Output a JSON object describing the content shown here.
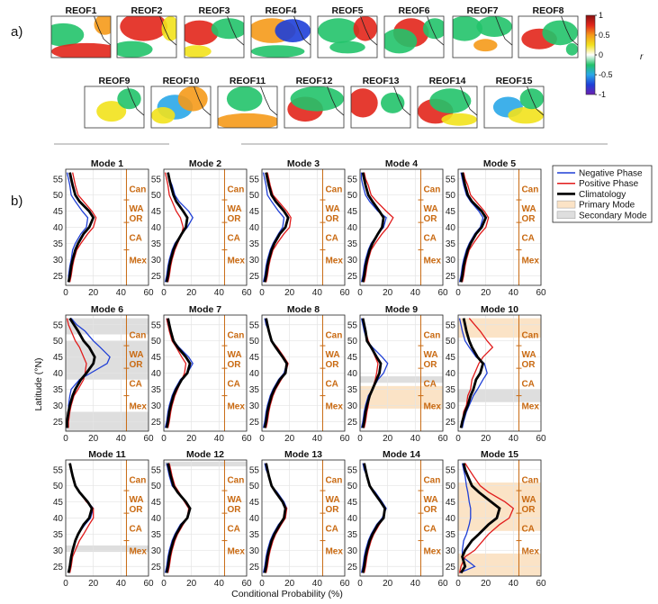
{
  "panel_a": {
    "label": "a)",
    "maps": [
      "REOF1",
      "REOF2",
      "REOF3",
      "REOF4",
      "REOF5",
      "REOF6",
      "REOF7",
      "REOF8",
      "REOF9",
      "REOF10",
      "REOF11",
      "REOF12",
      "REOF13",
      "REOF14",
      "REOF15"
    ],
    "colorbar": {
      "label": "r",
      "ticks": [
        "1",
        "0.5",
        "0",
        "-0.5",
        "-1"
      ],
      "colors": [
        "#6a1fb0",
        "#1e3fd8",
        "#2aa7e8",
        "#22c36a",
        "#ffffff",
        "#f2e21c",
        "#f59a1a",
        "#e2261b",
        "#8a1010"
      ]
    }
  },
  "panel_b": {
    "label": "b)",
    "ylabel": "Latitude (°N)",
    "xlabel": "Conditional Probability (%)",
    "yticks": [
      25,
      30,
      35,
      40,
      45,
      50,
      55
    ],
    "xticks": [
      0,
      20,
      40,
      60
    ],
    "regions": [
      "Can",
      "WA",
      "OR",
      "CA",
      "Mex"
    ],
    "legend": {
      "negative": "Negative Phase",
      "positive": "Positive Phase",
      "climatology": "Climatology",
      "primary": "Primary Mode",
      "secondary": "Secondary Mode"
    },
    "colors": {
      "negative": "#1f3fd6",
      "positive": "#e11b1b",
      "climatology": "#000000",
      "primary": "#fbe3c6",
      "secondary": "#dedede",
      "region": "#c96a12"
    }
  },
  "chart_data": {
    "type": "line",
    "lat": [
      23,
      25,
      28,
      30,
      33,
      35,
      38,
      40,
      43,
      45,
      48,
      50,
      53,
      55,
      57
    ],
    "ylim": [
      22,
      58
    ],
    "xlim": [
      0,
      60
    ],
    "modes": [
      {
        "title": "Mode 1",
        "clim": [
          2,
          3,
          4,
          5,
          7,
          9,
          13,
          17,
          20,
          17,
          10,
          7,
          5,
          4,
          3
        ],
        "neg": [
          2,
          2,
          3,
          4,
          5,
          7,
          11,
          15,
          16,
          12,
          7,
          4,
          3,
          2,
          1
        ],
        "pos": [
          3,
          4,
          5,
          6,
          8,
          11,
          16,
          20,
          22,
          19,
          13,
          9,
          7,
          6,
          5
        ],
        "primary": [],
        "secondary": []
      },
      {
        "title": "Mode 2",
        "clim": [
          2,
          3,
          4,
          5,
          7,
          9,
          13,
          16,
          17,
          14,
          9,
          7,
          5,
          4,
          3
        ],
        "neg": [
          1,
          2,
          3,
          4,
          6,
          8,
          13,
          17,
          21,
          18,
          11,
          8,
          6,
          4,
          3
        ],
        "pos": [
          3,
          4,
          5,
          6,
          8,
          10,
          13,
          14,
          12,
          9,
          6,
          4,
          3,
          2,
          1
        ],
        "primary": [],
        "secondary": []
      },
      {
        "title": "Mode 3",
        "clim": [
          2,
          3,
          4,
          5,
          7,
          9,
          13,
          17,
          19,
          16,
          10,
          7,
          5,
          4,
          3
        ],
        "neg": [
          1,
          2,
          3,
          4,
          6,
          8,
          12,
          15,
          16,
          12,
          7,
          4,
          3,
          2,
          1
        ],
        "pos": [
          3,
          4,
          5,
          6,
          8,
          11,
          16,
          20,
          21,
          18,
          12,
          8,
          6,
          5,
          4
        ],
        "primary": [],
        "secondary": []
      },
      {
        "title": "Mode 4",
        "clim": [
          2,
          3,
          4,
          5,
          7,
          9,
          13,
          16,
          17,
          14,
          9,
          6,
          4,
          3,
          2
        ],
        "neg": [
          1,
          2,
          3,
          4,
          6,
          8,
          13,
          17,
          19,
          13,
          7,
          4,
          2,
          1,
          1
        ],
        "pos": [
          3,
          4,
          5,
          6,
          8,
          11,
          16,
          20,
          24,
          19,
          12,
          8,
          6,
          4,
          3
        ],
        "primary": [],
        "secondary": []
      },
      {
        "title": "Mode 5",
        "clim": [
          2,
          3,
          4,
          5,
          7,
          9,
          13,
          17,
          20,
          17,
          10,
          7,
          5,
          4,
          3
        ],
        "neg": [
          1,
          2,
          3,
          4,
          6,
          8,
          12,
          16,
          18,
          15,
          9,
          6,
          4,
          3,
          2
        ],
        "pos": [
          3,
          4,
          5,
          6,
          8,
          11,
          16,
          20,
          22,
          19,
          13,
          9,
          7,
          5,
          4
        ],
        "primary": [],
        "secondary": []
      },
      {
        "title": "Mode 6",
        "clim": [
          1,
          1,
          2,
          3,
          5,
          7,
          11,
          15,
          20,
          21,
          17,
          13,
          9,
          6,
          3
        ],
        "neg": [
          1,
          1,
          2,
          2,
          3,
          4,
          10,
          18,
          30,
          32,
          25,
          20,
          14,
          8,
          4
        ],
        "pos": [
          2,
          2,
          3,
          4,
          6,
          9,
          13,
          14,
          15,
          13,
          10,
          7,
          4,
          2,
          1
        ],
        "primary": [],
        "secondary": [
          [
            22,
            28
          ],
          [
            38,
            50
          ],
          [
            52,
            57
          ]
        ]
      },
      {
        "title": "Mode 7",
        "clim": [
          2,
          3,
          4,
          5,
          7,
          9,
          13,
          17,
          19,
          16,
          10,
          7,
          5,
          4,
          3
        ],
        "neg": [
          1,
          2,
          3,
          4,
          6,
          8,
          12,
          17,
          21,
          18,
          11,
          7,
          5,
          3,
          2
        ],
        "pos": [
          3,
          4,
          5,
          6,
          8,
          10,
          13,
          15,
          16,
          13,
          9,
          6,
          4,
          3,
          2
        ],
        "primary": [],
        "secondary": []
      },
      {
        "title": "Mode 8",
        "clim": [
          2,
          3,
          4,
          5,
          7,
          9,
          13,
          17,
          18,
          15,
          10,
          7,
          5,
          4,
          3
        ],
        "neg": [
          1,
          2,
          3,
          4,
          6,
          8,
          12,
          16,
          18,
          15,
          10,
          7,
          5,
          3,
          2
        ],
        "pos": [
          3,
          4,
          5,
          6,
          8,
          10,
          14,
          17,
          19,
          16,
          11,
          7,
          5,
          4,
          3
        ],
        "primary": [],
        "secondary": []
      },
      {
        "title": "Mode 9",
        "clim": [
          2,
          3,
          4,
          5,
          7,
          9,
          12,
          14,
          15,
          12,
          8,
          5,
          4,
          3,
          2
        ],
        "neg": [
          1,
          2,
          3,
          4,
          6,
          9,
          13,
          17,
          20,
          16,
          9,
          5,
          3,
          2,
          1
        ],
        "pos": [
          3,
          4,
          5,
          6,
          7,
          9,
          11,
          12,
          13,
          11,
          8,
          6,
          4,
          3,
          2
        ],
        "primary": [
          [
            29,
            36
          ]
        ],
        "secondary": [
          [
            37,
            39
          ]
        ]
      },
      {
        "title": "Mode 10",
        "clim": [
          2,
          3,
          5,
          7,
          9,
          11,
          13,
          16,
          18,
          14,
          10,
          8,
          6,
          5,
          4
        ],
        "neg": [
          3,
          4,
          6,
          8,
          11,
          14,
          18,
          21,
          19,
          13,
          8,
          5,
          3,
          2,
          1
        ],
        "pos": [
          2,
          3,
          4,
          6,
          7,
          9,
          10,
          12,
          15,
          18,
          25,
          21,
          16,
          12,
          8
        ],
        "primary": [
          [
            51,
            57
          ]
        ],
        "secondary": [
          [
            31,
            35
          ]
        ]
      },
      {
        "title": "Mode 11",
        "clim": [
          2,
          3,
          4,
          5,
          7,
          9,
          13,
          17,
          19,
          16,
          10,
          7,
          5,
          4,
          3
        ],
        "neg": [
          2,
          3,
          4,
          5,
          7,
          9,
          14,
          18,
          20,
          16,
          10,
          7,
          5,
          4,
          3
        ],
        "pos": [
          3,
          4,
          5,
          7,
          10,
          13,
          17,
          20,
          20,
          15,
          10,
          7,
          5,
          4,
          3
        ],
        "primary": [],
        "secondary": [
          [
            29.5,
            31.5
          ]
        ]
      },
      {
        "title": "Mode 12",
        "clim": [
          2,
          3,
          4,
          5,
          7,
          9,
          13,
          17,
          19,
          16,
          10,
          7,
          5,
          4,
          3
        ],
        "neg": [
          1,
          2,
          3,
          4,
          6,
          8,
          12,
          17,
          19,
          16,
          10,
          6,
          4,
          3,
          2
        ],
        "pos": [
          3,
          4,
          5,
          6,
          8,
          10,
          14,
          17,
          18,
          15,
          11,
          8,
          6,
          5,
          4
        ],
        "primary": [],
        "secondary": [
          [
            56,
            57.5
          ]
        ]
      },
      {
        "title": "Mode 13",
        "clim": [
          2,
          3,
          4,
          5,
          7,
          9,
          13,
          16,
          17,
          15,
          10,
          7,
          5,
          4,
          3
        ],
        "neg": [
          1,
          2,
          3,
          4,
          6,
          8,
          12,
          16,
          18,
          16,
          11,
          7,
          5,
          3,
          2
        ],
        "pos": [
          3,
          4,
          5,
          6,
          8,
          10,
          14,
          17,
          18,
          15,
          10,
          7,
          5,
          4,
          3
        ],
        "primary": [],
        "secondary": []
      },
      {
        "title": "Mode 14",
        "clim": [
          2,
          3,
          4,
          5,
          7,
          9,
          13,
          17,
          18,
          15,
          10,
          7,
          5,
          4,
          3
        ],
        "neg": [
          1,
          2,
          3,
          4,
          6,
          8,
          12,
          16,
          19,
          16,
          11,
          7,
          5,
          3,
          2
        ],
        "pos": [
          3,
          4,
          5,
          6,
          8,
          10,
          14,
          17,
          18,
          15,
          10,
          7,
          5,
          4,
          3
        ],
        "primary": [],
        "secondary": []
      },
      {
        "title": "Mode 15",
        "clim": [
          2,
          5,
          3,
          5,
          10,
          15,
          22,
          28,
          30,
          24,
          15,
          10,
          7,
          5,
          4
        ],
        "neg": [
          1,
          12,
          3,
          3,
          4,
          6,
          8,
          9,
          9,
          8,
          7,
          6,
          5,
          4,
          3
        ],
        "pos": [
          1,
          2,
          5,
          12,
          18,
          22,
          30,
          37,
          40,
          34,
          22,
          16,
          11,
          8,
          5
        ],
        "primary": [
          [
            22,
            29
          ],
          [
            36,
            51
          ]
        ],
        "secondary": []
      }
    ]
  }
}
